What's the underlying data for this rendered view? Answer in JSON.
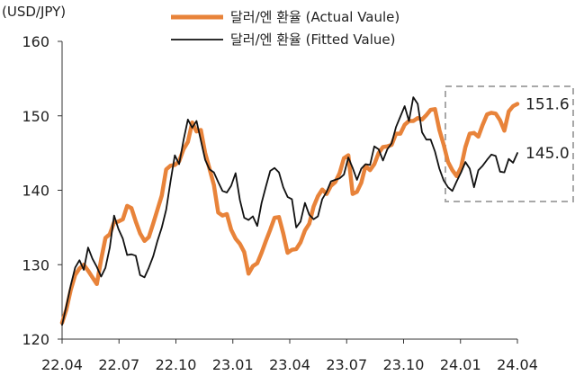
{
  "chart_data": {
    "type": "line",
    "unit_label": "(USD/JPY)",
    "ylim": [
      120,
      160
    ],
    "yticks": [
      120,
      130,
      140,
      150,
      160
    ],
    "x_tick_labels": [
      "22.04",
      "22.07",
      "22.10",
      "23.01",
      "23.04",
      "23.07",
      "23.10",
      "24.01",
      "24.04"
    ],
    "grid": false,
    "legend_position": "top-center",
    "colors": {
      "actual": "#E8833A",
      "fitted": "#111111",
      "highlight_box": "#A8A8A8"
    },
    "series": [
      {
        "name": "달러/엔 환율 (Actual Vaule)",
        "values": [
          122.2,
          124,
          126.6,
          128.6,
          129.5,
          130,
          129.2,
          128.3,
          127.4,
          130.7,
          133.6,
          134.1,
          135.7,
          135.8,
          136.1,
          137.9,
          137.6,
          135.8,
          134.2,
          133.2,
          133.7,
          135.5,
          137.4,
          139.3,
          142.8,
          143.3,
          143.4,
          143.9,
          145.5,
          146.5,
          149.1,
          147.9,
          148.1,
          145,
          142.9,
          140.7,
          137,
          136.6,
          136.8,
          134.7,
          133.5,
          132.8,
          131.7,
          128.8,
          129.8,
          130.2,
          131.6,
          133.2,
          134.7,
          136.3,
          136.4,
          134.2,
          131.6,
          132,
          132.1,
          133,
          134.6,
          135.5,
          137.8,
          139.2,
          140.1,
          139.5,
          140.6,
          141.1,
          142.3,
          144.3,
          144.7,
          139.5,
          139.8,
          141,
          143.3,
          142.7,
          143.5,
          145,
          145.8,
          145.9,
          146.1,
          147.6,
          147.6,
          148.8,
          149.3,
          149.3,
          149.7,
          149.5,
          150.1,
          150.8,
          150.9,
          148.1,
          146.1,
          143.8,
          142.7,
          141.9,
          143.1,
          145.8,
          147.6,
          147.7,
          147.2,
          148.8,
          150.2,
          150.4,
          150.3,
          149.4,
          148,
          150.6,
          151.3,
          151.6
        ]
      },
      {
        "name": "달러/엔 환율 (Fitted Value)",
        "values": [
          121.9,
          124.5,
          127.2,
          129.6,
          130.6,
          129.3,
          132.3,
          130.8,
          129.7,
          128.4,
          129.6,
          132.3,
          136.6,
          134.8,
          133.5,
          131.3,
          131.4,
          131.2,
          128.6,
          128.3,
          129.6,
          131.1,
          133.2,
          135,
          137.4,
          141.2,
          144.7,
          143.5,
          146.7,
          149.5,
          148.4,
          149.3,
          146.7,
          144.1,
          142.8,
          142.4,
          141.1,
          139.9,
          139.7,
          140.6,
          142.3,
          138.7,
          136.3,
          136,
          136.5,
          135.2,
          138.3,
          140.5,
          142.6,
          143,
          142.4,
          140.4,
          139.1,
          138.8,
          135,
          135.8,
          138.3,
          136.7,
          136.1,
          136.5,
          138.8,
          139.8,
          141.2,
          141.4,
          141.6,
          142.1,
          144.4,
          143,
          141.4,
          142.9,
          143.5,
          143.4,
          145.9,
          145.5,
          144,
          145.5,
          146.3,
          148.5,
          149.9,
          151.3,
          149.3,
          152.5,
          151.6,
          147.8,
          146.8,
          146.8,
          145.2,
          142.9,
          141.3,
          140.4,
          139.9,
          141.2,
          142.4,
          143.8,
          142.9,
          140.4,
          142.7,
          143.3,
          144.1,
          144.8,
          144.6,
          142.5,
          142.4,
          144.2,
          143.7,
          145
        ]
      }
    ],
    "annotations": [
      {
        "series": "Actual",
        "text": "151.6"
      },
      {
        "series": "Fitted",
        "text": "145.0"
      }
    ]
  }
}
